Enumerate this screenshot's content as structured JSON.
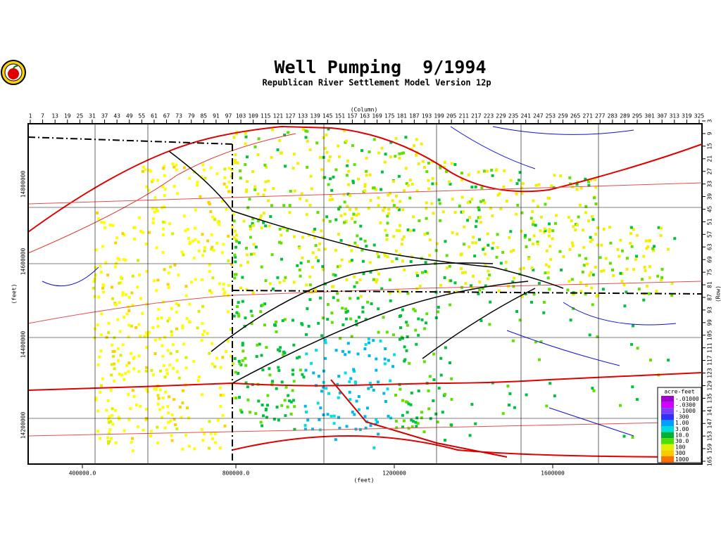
{
  "header": {
    "title": "Well Pumping  9/1994",
    "subtitle": "Republican River Settlement Model Version 12p"
  },
  "axes": {
    "column_label": "(Column)",
    "row_label": "(Row)",
    "x_label": "(feet)",
    "y_label": "(feet)",
    "column_ticks": [
      "1",
      "7",
      "13",
      "19",
      "25",
      "31",
      "37",
      "43",
      "49",
      "55",
      "61",
      "67",
      "73",
      "79",
      "85",
      "91",
      "97",
      "103",
      "109",
      "115",
      "121",
      "127",
      "133",
      "139",
      "145",
      "151",
      "157",
      "163",
      "169",
      "175",
      "181",
      "187",
      "193",
      "199",
      "205",
      "211",
      "217",
      "223",
      "229",
      "235",
      "241",
      "247",
      "253",
      "259",
      "265",
      "271",
      "277",
      "283",
      "289",
      "295",
      "301",
      "307",
      "313",
      "319",
      "325"
    ],
    "row_ticks": [
      "3",
      "9",
      "15",
      "21",
      "27",
      "33",
      "39",
      "45",
      "51",
      "57",
      "63",
      "69",
      "75",
      "81",
      "87",
      "93",
      "99",
      "105",
      "111",
      "117",
      "123",
      "129",
      "135",
      "141",
      "147",
      "153",
      "159",
      "165"
    ],
    "x_ticks": [
      "400000.0",
      "800000.0",
      "1200000",
      "1600000"
    ],
    "y_ticks": [
      "14800000",
      "14600000",
      "14400000",
      "14200000"
    ]
  },
  "legend": {
    "title": "acre-feet",
    "entries": [
      {
        "label": "-.01000",
        "color": "#a000d0"
      },
      {
        "label": "-.0300",
        "color": "#d000ff"
      },
      {
        "label": "-.1000",
        "color": "#7a3cff"
      },
      {
        "label": ".300",
        "color": "#3030ff"
      },
      {
        "label": "1.00",
        "color": "#00a0ff"
      },
      {
        "label": "3.00",
        "color": "#00dcdc"
      },
      {
        "label": "10.0",
        "color": "#00b030"
      },
      {
        "label": "30.0",
        "color": "#50e000"
      },
      {
        "label": "100",
        "color": "#e0f000"
      },
      {
        "label": "300",
        "color": "#ffc800"
      },
      {
        "label": "1000",
        "color": "#ff7000"
      }
    ]
  }
}
